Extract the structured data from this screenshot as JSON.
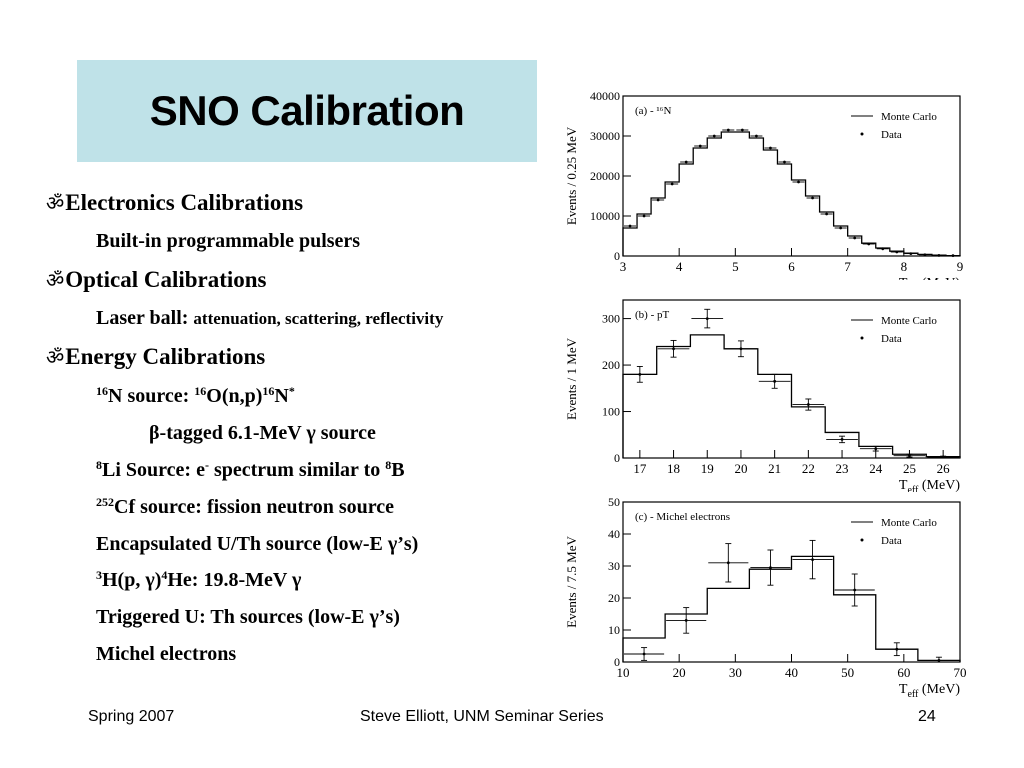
{
  "slide": {
    "title": "SNO Calibration",
    "bullet_symbol": "ॐ",
    "items": [
      {
        "level": 1,
        "text": "Electronics Calibrations"
      },
      {
        "level": 2,
        "text": "Built-in programmable pulsers"
      },
      {
        "level": 1,
        "text": "Optical Calibrations"
      },
      {
        "level": 2,
        "text": "Laser ball:",
        "extra": "attenuation, scattering, reflectivity"
      },
      {
        "level": 1,
        "text": "Energy Calibrations"
      },
      {
        "level": 2,
        "sup1": "16",
        "text": "N source:",
        "sup2": "16",
        "text2": "O(n,p)",
        "sup3": "16",
        "text3": "N",
        "sup4": "*"
      },
      {
        "level": 3,
        "text": "β-tagged 6.1-MeV γ source"
      },
      {
        "level": 2,
        "sup1": "8",
        "text": "Li Source: e",
        "sup2": "-",
        "text2": "spectrum similar to",
        "sup3": "8",
        "text3": "B"
      },
      {
        "level": 2,
        "sup1": "252",
        "text": "Cf source: fission neutron source"
      },
      {
        "level": 2,
        "text": "Encapsulated U/Th source (low-E γ’s)"
      },
      {
        "level": 2,
        "sup1": "3",
        "text": "H(p, γ)",
        "sup2": "4",
        "text2": "He: 19.8-MeV γ"
      },
      {
        "level": 2,
        "text": "Triggered U: Th sources (low-E γ’s)"
      },
      {
        "level": 2,
        "text": "Michel electrons"
      }
    ]
  },
  "footer": {
    "left": "Spring 2007",
    "center": "Steve Elliott, UNM Seminar Series",
    "right": "24"
  },
  "chart_data": [
    {
      "type": "histogram",
      "panel_label": "(a) - ¹⁶N",
      "ylabel": "Events / 0.25 MeV",
      "xlabel": "T_eff (MeV)",
      "xlim": [
        3,
        9
      ],
      "ylim": [
        0,
        40000
      ],
      "xticks": [
        3,
        4,
        5,
        6,
        7,
        8,
        9
      ],
      "yticks": [
        0,
        10000,
        20000,
        30000,
        40000
      ],
      "legend": [
        "Monte Carlo",
        "Data"
      ],
      "legend_position": "top-right",
      "bin_edges": [
        3.0,
        3.25,
        3.5,
        3.75,
        4.0,
        4.25,
        4.5,
        4.75,
        5.0,
        5.25,
        5.5,
        5.75,
        6.0,
        6.25,
        6.5,
        6.75,
        7.0,
        7.25,
        7.5,
        7.75,
        8.0,
        8.25,
        8.5,
        8.75,
        9.0
      ],
      "monte_carlo": [
        7000,
        10500,
        14500,
        18500,
        23000,
        27000,
        29500,
        31000,
        31000,
        29500,
        26500,
        23000,
        19000,
        15000,
        11000,
        7500,
        5000,
        3200,
        2000,
        1200,
        700,
        400,
        200,
        100
      ],
      "data": [
        7500,
        10000,
        14000,
        18000,
        23500,
        27500,
        30000,
        31500,
        31500,
        30000,
        27000,
        23500,
        18500,
        14500,
        10500,
        7000,
        4500,
        3000,
        1800,
        1000,
        600,
        300,
        150,
        80
      ]
    },
    {
      "type": "histogram",
      "panel_label": "(b) - pT",
      "ylabel": "Events / 1 MeV",
      "xlabel": "T_eff (MeV)",
      "xlim": [
        16.5,
        26.5
      ],
      "ylim": [
        0,
        340
      ],
      "xticks": [
        17,
        18,
        19,
        20,
        21,
        22,
        23,
        24,
        25,
        26
      ],
      "yticks": [
        0,
        100,
        200,
        300
      ],
      "legend": [
        "Monte Carlo",
        "Data"
      ],
      "legend_position": "top-right",
      "bin_edges": [
        16.5,
        17.5,
        18.5,
        19.5,
        20.5,
        21.5,
        22.5,
        23.5,
        24.5,
        25.5,
        26.5
      ],
      "monte_carlo": [
        180,
        240,
        265,
        235,
        180,
        110,
        55,
        25,
        8,
        3
      ],
      "data": [
        180,
        235,
        300,
        235,
        165,
        115,
        40,
        20,
        5,
        2
      ],
      "data_err": [
        17,
        18,
        20,
        17,
        15,
        12,
        7,
        5,
        3,
        2
      ]
    },
    {
      "type": "histogram",
      "panel_label": "(c) - Michel electrons",
      "ylabel": "Events / 7.5 MeV",
      "xlabel": "T_eff (MeV)",
      "xlim": [
        10,
        70
      ],
      "ylim": [
        0,
        50
      ],
      "xticks": [
        10,
        20,
        30,
        40,
        50,
        60,
        70
      ],
      "yticks": [
        0,
        10,
        20,
        30,
        40,
        50
      ],
      "legend": [
        "Monte Carlo",
        "Data"
      ],
      "legend_position": "top-right",
      "bin_edges": [
        10,
        17.5,
        25,
        32.5,
        40,
        47.5,
        55,
        62.5,
        70
      ],
      "monte_carlo": [
        7.5,
        15,
        23,
        29,
        33,
        21,
        4,
        0.5
      ],
      "data": [
        2.5,
        13,
        31,
        29.5,
        32,
        22.5,
        4,
        0.5
      ],
      "data_err": [
        2,
        4,
        6,
        5.5,
        6,
        5,
        2,
        1
      ]
    }
  ]
}
